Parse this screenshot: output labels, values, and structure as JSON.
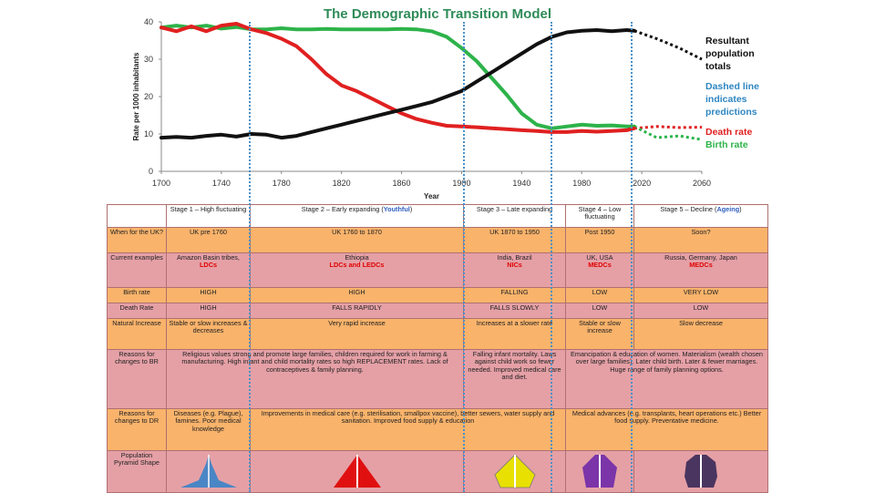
{
  "chart_data": {
    "type": "line",
    "title": "The Demographic Transition Model",
    "xlabel": "Year",
    "ylabel": "Rate per 1000 inhabitants",
    "xlim": [
      1700,
      2060
    ],
    "ylim": [
      0,
      40
    ],
    "xticks": [
      1700,
      1740,
      1780,
      1820,
      1860,
      1900,
      1940,
      1980,
      2020,
      2060
    ],
    "yticks": [
      0,
      10,
      20,
      30,
      40
    ],
    "grid": false,
    "stage_boundaries": [
      1760,
      1900,
      1950,
      2015
    ],
    "series": [
      {
        "name": "Birth rate",
        "color": "#2db34a",
        "x": [
          1700,
          1710,
          1720,
          1730,
          1740,
          1750,
          1760,
          1770,
          1780,
          1790,
          1800,
          1810,
          1820,
          1830,
          1840,
          1850,
          1860,
          1870,
          1880,
          1890,
          1900,
          1910,
          1920,
          1930,
          1940,
          1950,
          1960,
          1970,
          1980,
          1990,
          2000,
          2010,
          2015
        ],
        "y": [
          38.5,
          39.0,
          38.5,
          39.0,
          38.2,
          38.6,
          38.0,
          38.0,
          38.3,
          38.0,
          38.0,
          38.1,
          38.0,
          38.0,
          38.0,
          38.0,
          38.1,
          38.0,
          37.5,
          36.0,
          33.0,
          29.5,
          25.0,
          20.5,
          15.5,
          12.5,
          11.5,
          12.0,
          12.5,
          12.2,
          12.3,
          12.0,
          12.0
        ]
      },
      {
        "name": "Death rate",
        "color": "#e02020",
        "x": [
          1700,
          1710,
          1720,
          1730,
          1740,
          1750,
          1760,
          1770,
          1780,
          1790,
          1800,
          1810,
          1820,
          1830,
          1840,
          1850,
          1860,
          1870,
          1880,
          1890,
          1900,
          1910,
          1920,
          1930,
          1940,
          1950,
          1960,
          1970,
          1980,
          1990,
          2000,
          2010,
          2015
        ],
        "y": [
          38.5,
          37.5,
          38.8,
          37.5,
          39.0,
          39.5,
          38.0,
          37.0,
          35.5,
          33.5,
          30.0,
          26.0,
          23.0,
          21.5,
          19.5,
          17.5,
          15.5,
          14.0,
          13.0,
          12.2,
          12.0,
          11.8,
          11.5,
          11.3,
          11.0,
          10.8,
          10.5,
          10.5,
          10.8,
          10.6,
          10.8,
          11.0,
          11.5
        ]
      },
      {
        "name": "Resultant population totals",
        "color": "#111111",
        "x": [
          1700,
          1710,
          1720,
          1730,
          1740,
          1750,
          1760,
          1770,
          1780,
          1790,
          1800,
          1810,
          1820,
          1830,
          1840,
          1850,
          1860,
          1870,
          1880,
          1890,
          1900,
          1910,
          1920,
          1930,
          1940,
          1950,
          1960,
          1970,
          1980,
          1990,
          2000,
          2010,
          2015
        ],
        "y": [
          9.0,
          9.2,
          9.0,
          9.5,
          9.8,
          9.3,
          10.0,
          9.8,
          9.0,
          9.5,
          10.5,
          11.5,
          12.5,
          13.5,
          14.5,
          15.5,
          16.5,
          17.5,
          18.5,
          20.0,
          21.5,
          24.0,
          26.5,
          29.0,
          31.5,
          34.0,
          36.0,
          37.2,
          37.6,
          37.8,
          37.5,
          37.8,
          37.6
        ]
      }
    ],
    "predictions": [
      {
        "series": "Resultant population totals",
        "color": "#111111",
        "x": [
          2015,
          2030,
          2045,
          2060
        ],
        "y": [
          37.6,
          35.5,
          33.0,
          30.0
        ]
      },
      {
        "series": "Death rate",
        "color": "#e02020",
        "x": [
          2015,
          2030,
          2045,
          2060
        ],
        "y": [
          11.5,
          12.0,
          11.7,
          11.8
        ]
      },
      {
        "series": "Birth rate",
        "color": "#2db34a",
        "x": [
          2015,
          2030,
          2045,
          2060
        ],
        "y": [
          12.0,
          9.0,
          9.5,
          8.5
        ]
      }
    ],
    "annotations": {
      "population": [
        "Resultant",
        "population",
        "totals"
      ],
      "dashed": [
        "Dashed line",
        "indicates",
        "predictions"
      ],
      "death": "Death rate",
      "birth": "Birth rate"
    }
  },
  "colors": {
    "orange_row": "#f9b36b",
    "pink_row": "#e5a0a6",
    "red_text": "#e00000",
    "blue_text": "#3060c0",
    "stage_line": "#4a90c8"
  },
  "table": {
    "stages": {
      "s1": "Stage 1 – High fluctuating",
      "s2_pre": "Stage 2 – Early expanding (",
      "s2_em": "Youthful",
      "s2_post": ")",
      "s3": "Stage 3 – Late expanding",
      "s4": "Stage 4 – Low fluctuating",
      "s5_pre": "Stage 5 – Decline (",
      "s5_em": "Ageing",
      "s5_post": ")"
    },
    "rows": {
      "when": {
        "label": "When for the UK?",
        "c1": "UK pre 1760",
        "c2": "UK 1760 to 1870",
        "c3": "UK 1870 to 1950",
        "c4": "Post 1950",
        "c5": "Soon?"
      },
      "examples": {
        "label": "Current examples",
        "c1": "Amazon Basin tribes,",
        "c1_red": "LDCs",
        "c2": "Ethiopia",
        "c2_red": "LDCs and LEDCs",
        "c3": "India, Brazil",
        "c3_red": "NICs",
        "c4": "UK, USA",
        "c4_red": "MEDCs",
        "c5": "Russia, Germany, Japan",
        "c5_red": "MEDCs"
      },
      "birth": {
        "label": "Birth rate",
        "c1": "HIGH",
        "c2": "HIGH",
        "c3": "FALLING",
        "c4": "LOW",
        "c5": "VERY LOW"
      },
      "death": {
        "label": "Death Rate",
        "c1": "HIGH",
        "c2": "FALLS RAPIDLY",
        "c3": "FALLS SLOWLY",
        "c4": "LOW",
        "c5": "LOW"
      },
      "natural": {
        "label": "Natural Increase",
        "c1": "Stable or slow increases & decreases",
        "c2": "Very rapid increase",
        "c3": "Increases at a slower rate",
        "c4": "Stable or slow increase",
        "c5": "Slow decrease"
      },
      "br_reasons": {
        "label": "Reasons for changes to BR",
        "c12": "Religious values strong and promote large families, children required for work in farming & manufacturing. High infant and child mortality rates so high REPLACEMENT rates. Lack of contraceptives & family planning.",
        "c3": "Falling infant mortality. Laws against child work so fewer needed. Improved medical care and diet.",
        "c45": "Emancipation & education of women. Materialism (wealth chosen over large families). Later child birth. Later & fewer marriages. Huge range of family planning options."
      },
      "dr_reasons": {
        "label": "Reasons for changes to DR",
        "c1": "Diseases (e.g. Plague), famines. Poor medical knowledge",
        "c23": "Improvements in medical care (e.g. sterilisation, smallpox vaccine), better sewers, water supply and sanitation. Improved food supply & education",
        "c45": "Medical advances (e.g. transplants, heart operations etc.) Better food supply. Preventative medicine."
      },
      "pyramid": {
        "label": "Population Pyramid Shape",
        "colors": [
          "#4a86c5",
          "#e01010",
          "#e8e000",
          "#7b35a8",
          "#4a3560"
        ]
      }
    }
  }
}
